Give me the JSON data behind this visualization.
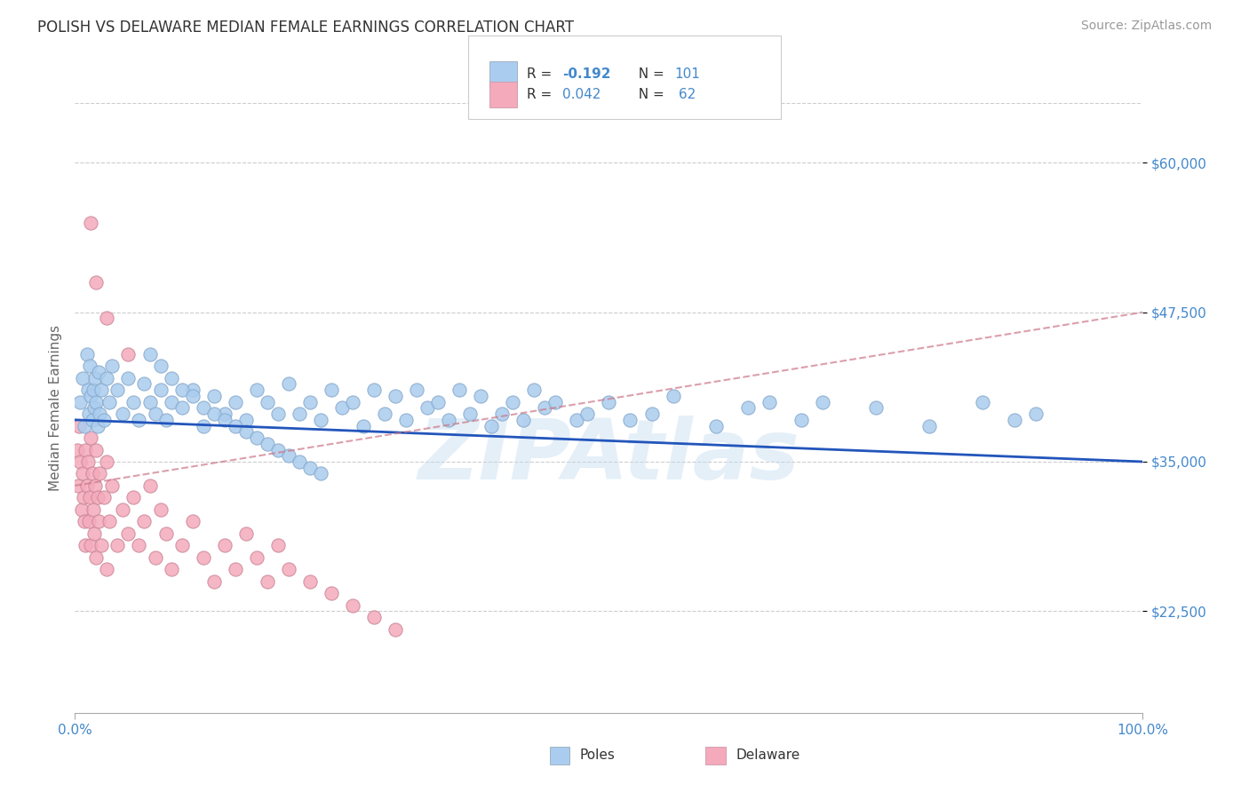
{
  "title": "POLISH VS DELAWARE MEDIAN FEMALE EARNINGS CORRELATION CHART",
  "source_text": "Source: ZipAtlas.com",
  "ylabel": "Median Female Earnings",
  "xlim": [
    0,
    100
  ],
  "ylim": [
    14000,
    65000
  ],
  "yticks": [
    22500,
    35000,
    47500,
    60000
  ],
  "ytick_labels": [
    "$22,500",
    "$35,000",
    "$47,500",
    "$60,000"
  ],
  "background_color": "#ffffff",
  "grid_color": "#cccccc",
  "watermark": "ZIPAtlas",
  "poles_color": "#aaccee",
  "poles_edge": "#88aacc",
  "poles_trend_color": "#2255bb",
  "delaware_color": "#f4aabb",
  "delaware_edge": "#cc8899",
  "delaware_trend_color": "#cc7788",
  "poles_R": -0.192,
  "poles_N": 101,
  "delaware_R": 0.042,
  "delaware_N": 62,
  "title_color": "#333333",
  "source_color": "#999999",
  "tick_color": "#4488cc",
  "ylabel_color": "#666666",
  "legend_box1": "#aaccee",
  "legend_box2": "#f4aabb",
  "poles_trend_x0": 0,
  "poles_trend_y0": 38500,
  "poles_trend_x1": 100,
  "poles_trend_y1": 35000,
  "delaware_trend_x0": 0,
  "delaware_trend_y0": 33000,
  "delaware_trend_x1": 100,
  "delaware_trend_y1": 47500,
  "poles_x": [
    0.5,
    0.7,
    0.9,
    1.1,
    1.2,
    1.3,
    1.4,
    1.5,
    1.6,
    1.7,
    1.8,
    1.9,
    2.0,
    2.1,
    2.2,
    2.3,
    2.5,
    2.7,
    3.0,
    3.2,
    3.5,
    4.0,
    4.5,
    5.0,
    5.5,
    6.0,
    6.5,
    7.0,
    7.5,
    8.0,
    8.5,
    9.0,
    10.0,
    11.0,
    12.0,
    13.0,
    14.0,
    15.0,
    16.0,
    17.0,
    18.0,
    19.0,
    20.0,
    21.0,
    22.0,
    23.0,
    24.0,
    25.0,
    26.0,
    27.0,
    28.0,
    29.0,
    30.0,
    31.0,
    32.0,
    33.0,
    34.0,
    35.0,
    36.0,
    37.0,
    38.0,
    39.0,
    40.0,
    41.0,
    42.0,
    43.0,
    44.0,
    45.0,
    47.0,
    48.0,
    50.0,
    52.0,
    54.0,
    56.0,
    60.0,
    63.0,
    65.0,
    68.0,
    70.0,
    75.0,
    80.0,
    85.0,
    88.0,
    90.0,
    7.0,
    8.0,
    9.0,
    10.0,
    11.0,
    12.0,
    13.0,
    14.0,
    15.0,
    16.0,
    17.0,
    18.0,
    19.0,
    20.0,
    21.0,
    22.0,
    23.0
  ],
  "poles_y": [
    40000,
    42000,
    38000,
    44000,
    41000,
    39000,
    43000,
    40500,
    38500,
    41000,
    39500,
    42000,
    40000,
    38000,
    42500,
    39000,
    41000,
    38500,
    42000,
    40000,
    43000,
    41000,
    39000,
    42000,
    40000,
    38500,
    41500,
    40000,
    39000,
    41000,
    38500,
    40000,
    39500,
    41000,
    38000,
    40500,
    39000,
    40000,
    38500,
    41000,
    40000,
    39000,
    41500,
    39000,
    40000,
    38500,
    41000,
    39500,
    40000,
    38000,
    41000,
    39000,
    40500,
    38500,
    41000,
    39500,
    40000,
    38500,
    41000,
    39000,
    40500,
    38000,
    39000,
    40000,
    38500,
    41000,
    39500,
    40000,
    38500,
    39000,
    40000,
    38500,
    39000,
    40500,
    38000,
    39500,
    40000,
    38500,
    40000,
    39500,
    38000,
    40000,
    38500,
    39000,
    44000,
    43000,
    42000,
    41000,
    40500,
    39500,
    39000,
    38500,
    38000,
    37500,
    37000,
    36500,
    36000,
    35500,
    35000,
    34500,
    34000
  ],
  "delaware_x": [
    0.2,
    0.3,
    0.4,
    0.5,
    0.6,
    0.7,
    0.8,
    0.9,
    1.0,
    1.0,
    1.1,
    1.2,
    1.3,
    1.4,
    1.5,
    1.5,
    1.6,
    1.7,
    1.8,
    1.9,
    2.0,
    2.0,
    2.1,
    2.2,
    2.3,
    2.5,
    2.7,
    3.0,
    3.0,
    3.2,
    3.5,
    4.0,
    4.5,
    5.0,
    5.5,
    6.0,
    6.5,
    7.0,
    7.5,
    8.0,
    8.5,
    9.0,
    10.0,
    11.0,
    12.0,
    13.0,
    14.0,
    15.0,
    16.0,
    17.0,
    18.0,
    19.0,
    20.0,
    22.0,
    24.0,
    26.0,
    28.0,
    30.0,
    1.5,
    2.0,
    3.0,
    5.0
  ],
  "delaware_y": [
    36000,
    33000,
    38000,
    35000,
    31000,
    34000,
    32000,
    30000,
    36000,
    28000,
    33000,
    35000,
    30000,
    32000,
    37000,
    28000,
    34000,
    31000,
    29000,
    33000,
    36000,
    27000,
    32000,
    30000,
    34000,
    28000,
    32000,
    35000,
    26000,
    30000,
    33000,
    28000,
    31000,
    29000,
    32000,
    28000,
    30000,
    33000,
    27000,
    31000,
    29000,
    26000,
    28000,
    30000,
    27000,
    25000,
    28000,
    26000,
    29000,
    27000,
    25000,
    28000,
    26000,
    25000,
    24000,
    23000,
    22000,
    21000,
    55000,
    50000,
    47000,
    44000
  ]
}
